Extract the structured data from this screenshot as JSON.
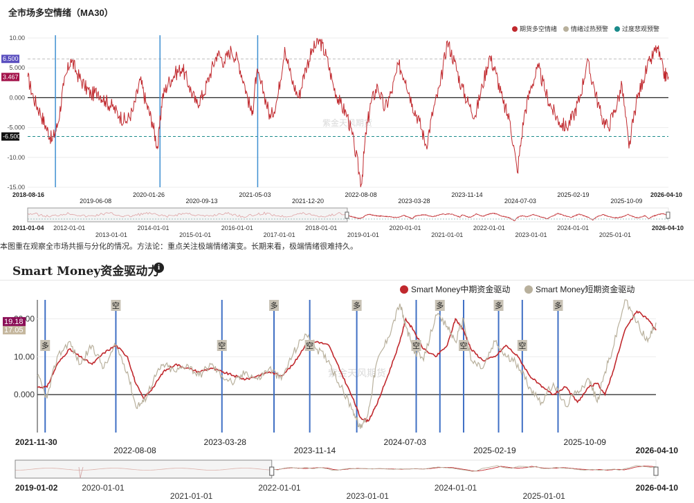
{
  "chart1": {
    "title": "全市场多空情绪（MA30）",
    "description": "本图重在观察全市场共振与分化的情况。方法论：重点关注极端情绪演变。长期来看，极端情绪很难持久。",
    "watermark": "紫金天风期货",
    "chart_data": {
      "type": "line",
      "title": "全市场多空情绪（MA30）",
      "legend": [
        "期货多空情绪",
        "情绪过热预警",
        "过度悲观预警"
      ],
      "legend_position": "top-right",
      "ylim": [
        -15,
        10
      ],
      "y_ticks": [
        "10.00",
        "5.000",
        "0.000",
        "-5.000",
        "-10.00",
        "-15.00"
      ],
      "x_ticks": [
        "2018-08-16",
        "2019-06-08",
        "2020-01-26",
        "2020-09-13",
        "2021-05-03",
        "2021-12-20",
        "2022-08-08",
        "2023-03-28",
        "2023-11-14",
        "2024-07-03",
        "2025-02-19",
        "2025-10-09",
        "2026-04-10"
      ],
      "overheat_threshold": 6.5,
      "pessimism_threshold": -6.5,
      "threshold_labels": [
        "6.500",
        "-6.500"
      ],
      "current_value_label": "3.467",
      "vertical_markers": [
        "2018-12",
        "2020-03",
        "2021-05"
      ],
      "series_points": [
        [
          "2018-08-16",
          3.5
        ],
        [
          "2018-09-10",
          0
        ],
        [
          "2018-10-10",
          -2.5
        ],
        [
          "2018-11-05",
          -5
        ],
        [
          "2018-12-01",
          -7.2
        ],
        [
          "2018-12-25",
          -4.5
        ],
        [
          "2019-01-20",
          2
        ],
        [
          "2019-02-20",
          6.5
        ],
        [
          "2019-03-20",
          4
        ],
        [
          "2019-04-20",
          2
        ],
        [
          "2019-05-20",
          0.5
        ],
        [
          "2019-06-20",
          1
        ],
        [
          "2019-07-20",
          -0.5
        ],
        [
          "2019-08-20",
          -1.5
        ],
        [
          "2019-09-20",
          -3
        ],
        [
          "2019-10-20",
          -4
        ],
        [
          "2019-11-20",
          -2
        ],
        [
          "2019-12-20",
          3
        ],
        [
          "2020-01-15",
          -1
        ],
        [
          "2020-02-10",
          -4
        ],
        [
          "2020-03-05",
          -8.5
        ],
        [
          "2020-03-25",
          0
        ],
        [
          "2020-04-20",
          2.5
        ],
        [
          "2020-05-20",
          4
        ],
        [
          "2020-06-20",
          5
        ],
        [
          "2020-07-20",
          2
        ],
        [
          "2020-08-20",
          -1
        ],
        [
          "2020-09-20",
          0.5
        ],
        [
          "2020-10-20",
          4
        ],
        [
          "2020-11-20",
          7.5
        ],
        [
          "2020-12-20",
          6
        ],
        [
          "2021-01-20",
          8
        ],
        [
          "2021-02-20",
          6
        ],
        [
          "2021-03-20",
          2
        ],
        [
          "2021-04-20",
          -3
        ],
        [
          "2021-05-10",
          4
        ],
        [
          "2021-06-10",
          1
        ],
        [
          "2021-07-10",
          -3.5
        ],
        [
          "2021-08-10",
          0
        ],
        [
          "2021-09-10",
          8.5
        ],
        [
          "2021-10-10",
          3
        ],
        [
          "2021-11-10",
          0
        ],
        [
          "2021-12-10",
          5
        ],
        [
          "2022-01-10",
          8
        ],
        [
          "2022-02-10",
          9.5
        ],
        [
          "2022-03-10",
          7
        ],
        [
          "2022-04-10",
          2
        ],
        [
          "2022-05-10",
          -1
        ],
        [
          "2022-06-10",
          -3
        ],
        [
          "2022-07-10",
          -8
        ],
        [
          "2022-08-10",
          -14.5
        ],
        [
          "2022-08-30",
          -6
        ],
        [
          "2022-09-20",
          -1
        ],
        [
          "2022-10-20",
          2
        ],
        [
          "2022-11-20",
          -2
        ],
        [
          "2022-12-20",
          1
        ],
        [
          "2023-01-20",
          5.5
        ],
        [
          "2023-02-20",
          3
        ],
        [
          "2023-03-20",
          -1
        ],
        [
          "2023-04-20",
          -4
        ],
        [
          "2023-05-20",
          -8
        ],
        [
          "2023-06-20",
          -2
        ],
        [
          "2023-07-20",
          2
        ],
        [
          "2023-08-20",
          9.5
        ],
        [
          "2023-09-20",
          6
        ],
        [
          "2023-10-20",
          2
        ],
        [
          "2023-11-20",
          -1
        ],
        [
          "2023-12-20",
          -3
        ],
        [
          "2024-01-20",
          2
        ],
        [
          "2024-02-20",
          7
        ],
        [
          "2024-03-20",
          4
        ],
        [
          "2024-04-20",
          -1
        ],
        [
          "2024-05-20",
          -4
        ],
        [
          "2024-06-20",
          -12.5
        ],
        [
          "2024-07-20",
          -3
        ],
        [
          "2024-08-20",
          2
        ],
        [
          "2024-09-20",
          5
        ],
        [
          "2024-10-20",
          1
        ],
        [
          "2024-11-20",
          -2
        ],
        [
          "2024-12-20",
          -4
        ],
        [
          "2025-01-20",
          -5
        ],
        [
          "2025-02-20",
          -3
        ],
        [
          "2025-03-20",
          0
        ],
        [
          "2025-04-20",
          6
        ],
        [
          "2025-05-20",
          2
        ],
        [
          "2025-06-20",
          -3
        ],
        [
          "2025-07-20",
          -5
        ],
        [
          "2025-08-20",
          -2
        ],
        [
          "2025-09-20",
          2
        ],
        [
          "2025-10-20",
          -8.5
        ],
        [
          "2025-11-20",
          -1
        ],
        [
          "2025-12-20",
          3
        ],
        [
          "2026-01-20",
          6
        ],
        [
          "2026-02-20",
          8.5
        ],
        [
          "2026-03-20",
          4
        ],
        [
          "2026-04-10",
          3.5
        ]
      ]
    },
    "navigator": {
      "start_label": "2011-01-04",
      "end_label": "2026-04-10",
      "ticks_top": [
        "2012-01-01",
        "2014-01-01",
        "2016-01-01",
        "2018-01-01",
        "2020-01-01",
        "2022-01-01",
        "2024-01-01"
      ],
      "ticks_bottom": [
        "2013-01-01",
        "2015-01-01",
        "2017-01-01",
        "2019-01-01",
        "2021-01-01",
        "2023-01-01",
        "2025-01-01"
      ]
    }
  },
  "chart2": {
    "title": "Smart Money资金驱动力",
    "info_icon": "info-icon",
    "watermark": "紫金天风期货",
    "chart_data": {
      "type": "line",
      "title": "Smart Money资金驱动力",
      "legend_position": "top-right",
      "ylim": [
        -10,
        25
      ],
      "y_ticks": [
        "20.00",
        "10.00",
        "0.000"
      ],
      "x_ticks": [
        "2021-11-30",
        "2022-08-08",
        "2023-03-28",
        "2023-11-14",
        "2024-07-03",
        "2025-02-19",
        "2025-10-09",
        "2026-04-10"
      ],
      "current_value_labels": [
        "19.18",
        "17.05"
      ],
      "series": [
        {
          "name": "Smart Money中期资金驱动",
          "color": "#c0282d",
          "points": [
            [
              "2021-11-30",
              2
            ],
            [
              "2021-12-25",
              2
            ],
            [
              "2022-01-20",
              8
            ],
            [
              "2022-02-20",
              12
            ],
            [
              "2022-03-20",
              10
            ],
            [
              "2022-04-20",
              8
            ],
            [
              "2022-05-20",
              11
            ],
            [
              "2022-06-20",
              13
            ],
            [
              "2022-07-20",
              10
            ],
            [
              "2022-08-10",
              3
            ],
            [
              "2022-08-30",
              -1
            ],
            [
              "2022-09-25",
              2
            ],
            [
              "2022-10-20",
              6
            ],
            [
              "2022-11-20",
              8
            ],
            [
              "2022-12-20",
              7
            ],
            [
              "2023-01-20",
              6
            ],
            [
              "2023-02-20",
              7
            ],
            [
              "2023-03-20",
              6
            ],
            [
              "2023-04-20",
              5
            ],
            [
              "2023-05-20",
              4
            ],
            [
              "2023-06-20",
              5
            ],
            [
              "2023-07-20",
              6
            ],
            [
              "2023-08-20",
              5
            ],
            [
              "2023-09-20",
              8
            ],
            [
              "2023-10-20",
              13
            ],
            [
              "2023-11-20",
              14
            ],
            [
              "2023-12-20",
              13
            ],
            [
              "2024-01-20",
              6
            ],
            [
              "2024-02-20",
              -1
            ],
            [
              "2024-03-10",
              -6
            ],
            [
              "2024-03-30",
              -7
            ],
            [
              "2024-04-20",
              -3
            ],
            [
              "2024-05-20",
              5
            ],
            [
              "2024-06-20",
              14
            ],
            [
              "2024-07-05",
              20
            ],
            [
              "2024-07-25",
              17
            ],
            [
              "2024-08-20",
              12
            ],
            [
              "2024-09-20",
              10
            ],
            [
              "2024-10-20",
              13
            ],
            [
              "2024-11-10",
              20
            ],
            [
              "2024-12-01",
              17
            ],
            [
              "2024-12-20",
              12
            ],
            [
              "2025-01-20",
              9
            ],
            [
              "2025-02-20",
              10
            ],
            [
              "2025-03-20",
              13
            ],
            [
              "2025-04-20",
              10
            ],
            [
              "2025-05-20",
              5
            ],
            [
              "2025-06-20",
              2
            ],
            [
              "2025-07-20",
              0
            ],
            [
              "2025-08-20",
              2
            ],
            [
              "2025-09-20",
              -2
            ],
            [
              "2025-10-20",
              2
            ],
            [
              "2025-11-10",
              3
            ],
            [
              "2025-11-30",
              0
            ],
            [
              "2025-12-20",
              6
            ],
            [
              "2026-01-20",
              17
            ],
            [
              "2026-02-20",
              22
            ],
            [
              "2026-03-20",
              20
            ],
            [
              "2026-04-10",
              17
            ]
          ]
        },
        {
          "name": "Smart Money短期资金驱动",
          "color": "#b8b09c",
          "points": [
            [
              "2021-11-30",
              5
            ],
            [
              "2021-12-25",
              -1
            ],
            [
              "2022-01-20",
              10
            ],
            [
              "2022-02-20",
              14
            ],
            [
              "2022-03-20",
              8
            ],
            [
              "2022-04-20",
              13
            ],
            [
              "2022-05-20",
              7
            ],
            [
              "2022-06-20",
              13
            ],
            [
              "2022-07-20",
              6
            ],
            [
              "2022-08-10",
              -3
            ],
            [
              "2022-08-30",
              -2
            ],
            [
              "2022-09-25",
              4
            ],
            [
              "2022-10-20",
              8
            ],
            [
              "2022-11-20",
              6
            ],
            [
              "2022-12-20",
              8
            ],
            [
              "2023-01-20",
              5
            ],
            [
              "2023-02-20",
              8
            ],
            [
              "2023-03-20",
              5
            ],
            [
              "2023-04-20",
              3
            ],
            [
              "2023-05-20",
              6
            ],
            [
              "2023-06-20",
              4
            ],
            [
              "2023-07-20",
              7
            ],
            [
              "2023-08-20",
              4
            ],
            [
              "2023-09-20",
              11
            ],
            [
              "2023-10-20",
              16
            ],
            [
              "2023-11-20",
              12
            ],
            [
              "2023-12-20",
              9
            ],
            [
              "2024-01-20",
              2
            ],
            [
              "2024-02-20",
              -4
            ],
            [
              "2024-03-10",
              -9
            ],
            [
              "2024-03-30",
              -5
            ],
            [
              "2024-04-20",
              8
            ],
            [
              "2024-05-20",
              15
            ],
            [
              "2024-06-20",
              24
            ],
            [
              "2024-07-05",
              18
            ],
            [
              "2024-07-25",
              12
            ],
            [
              "2024-08-20",
              9
            ],
            [
              "2024-09-20",
              21
            ],
            [
              "2024-10-20",
              18
            ],
            [
              "2024-11-10",
              14
            ],
            [
              "2024-12-01",
              20
            ],
            [
              "2024-12-20",
              9
            ],
            [
              "2025-01-20",
              7
            ],
            [
              "2025-02-20",
              14
            ],
            [
              "2025-03-20",
              10
            ],
            [
              "2025-04-20",
              8
            ],
            [
              "2025-05-20",
              2
            ],
            [
              "2025-06-20",
              -2
            ],
            [
              "2025-07-20",
              3
            ],
            [
              "2025-08-20",
              -3
            ],
            [
              "2025-09-20",
              1
            ],
            [
              "2025-10-20",
              4
            ],
            [
              "2025-11-10",
              -2
            ],
            [
              "2025-11-30",
              6
            ],
            [
              "2025-12-20",
              12
            ],
            [
              "2026-01-20",
              25
            ],
            [
              "2026-02-20",
              19
            ],
            [
              "2026-03-20",
              14
            ],
            [
              "2026-04-10",
              19
            ]
          ]
        }
      ],
      "signals": [
        {
          "date": "2021-12-20",
          "label": "多",
          "pos": "low"
        },
        {
          "date": "2022-06-20",
          "label": "空",
          "pos": "high"
        },
        {
          "date": "2023-03-20",
          "label": "空",
          "pos": "low"
        },
        {
          "date": "2023-08-01",
          "label": "多",
          "pos": "high"
        },
        {
          "date": "2023-11-01",
          "label": "空",
          "pos": "low"
        },
        {
          "date": "2024-03-01",
          "label": "多",
          "pos": "high"
        },
        {
          "date": "2024-08-01",
          "label": "空",
          "pos": "low"
        },
        {
          "date": "2024-10-01",
          "label": "多",
          "pos": "high"
        },
        {
          "date": "2024-12-01",
          "label": "空",
          "pos": "low"
        },
        {
          "date": "2025-03-01",
          "label": "多",
          "pos": "high"
        },
        {
          "date": "2025-05-01",
          "label": "空",
          "pos": "low"
        },
        {
          "date": "2025-08-01",
          "label": "多",
          "pos": "high"
        }
      ]
    },
    "navigator": {
      "start_label": "2019-01-02",
      "end_label": "2026-04-10",
      "ticks_top": [
        "2020-01-01",
        "2022-01-01",
        "2024-01-01"
      ],
      "ticks_bottom": [
        "2021-01-01",
        "2023-01-01",
        "2025-01-01"
      ]
    }
  }
}
